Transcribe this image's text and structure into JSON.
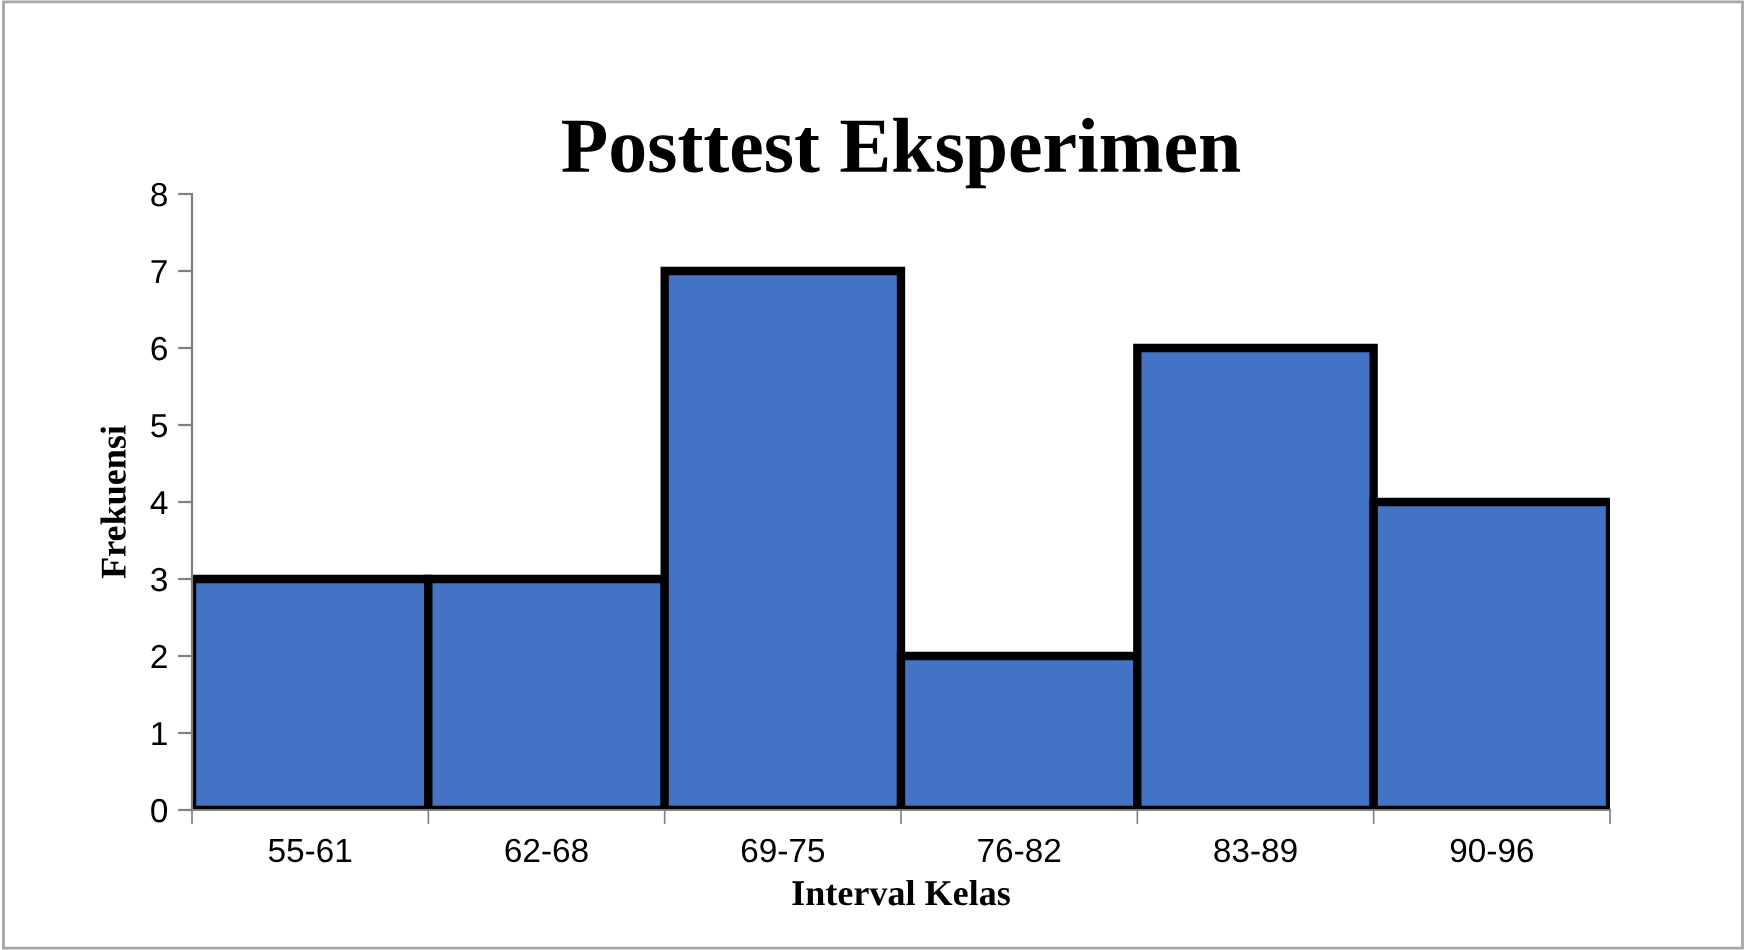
{
  "chart_data": {
    "type": "bar",
    "title": "Posttest Eksperimen",
    "xlabel": "Interval Kelas",
    "ylabel": "Frekuensi",
    "categories": [
      "55-61",
      "62-68",
      "69-75",
      "76-82",
      "83-89",
      "90-96"
    ],
    "values": [
      3,
      3,
      7,
      2,
      6,
      4
    ],
    "color": "#4472c4",
    "ylim": [
      0,
      8
    ],
    "yticks": [
      0,
      1,
      2,
      3,
      4,
      5,
      6,
      7,
      8
    ],
    "grid": false,
    "legend": false
  }
}
